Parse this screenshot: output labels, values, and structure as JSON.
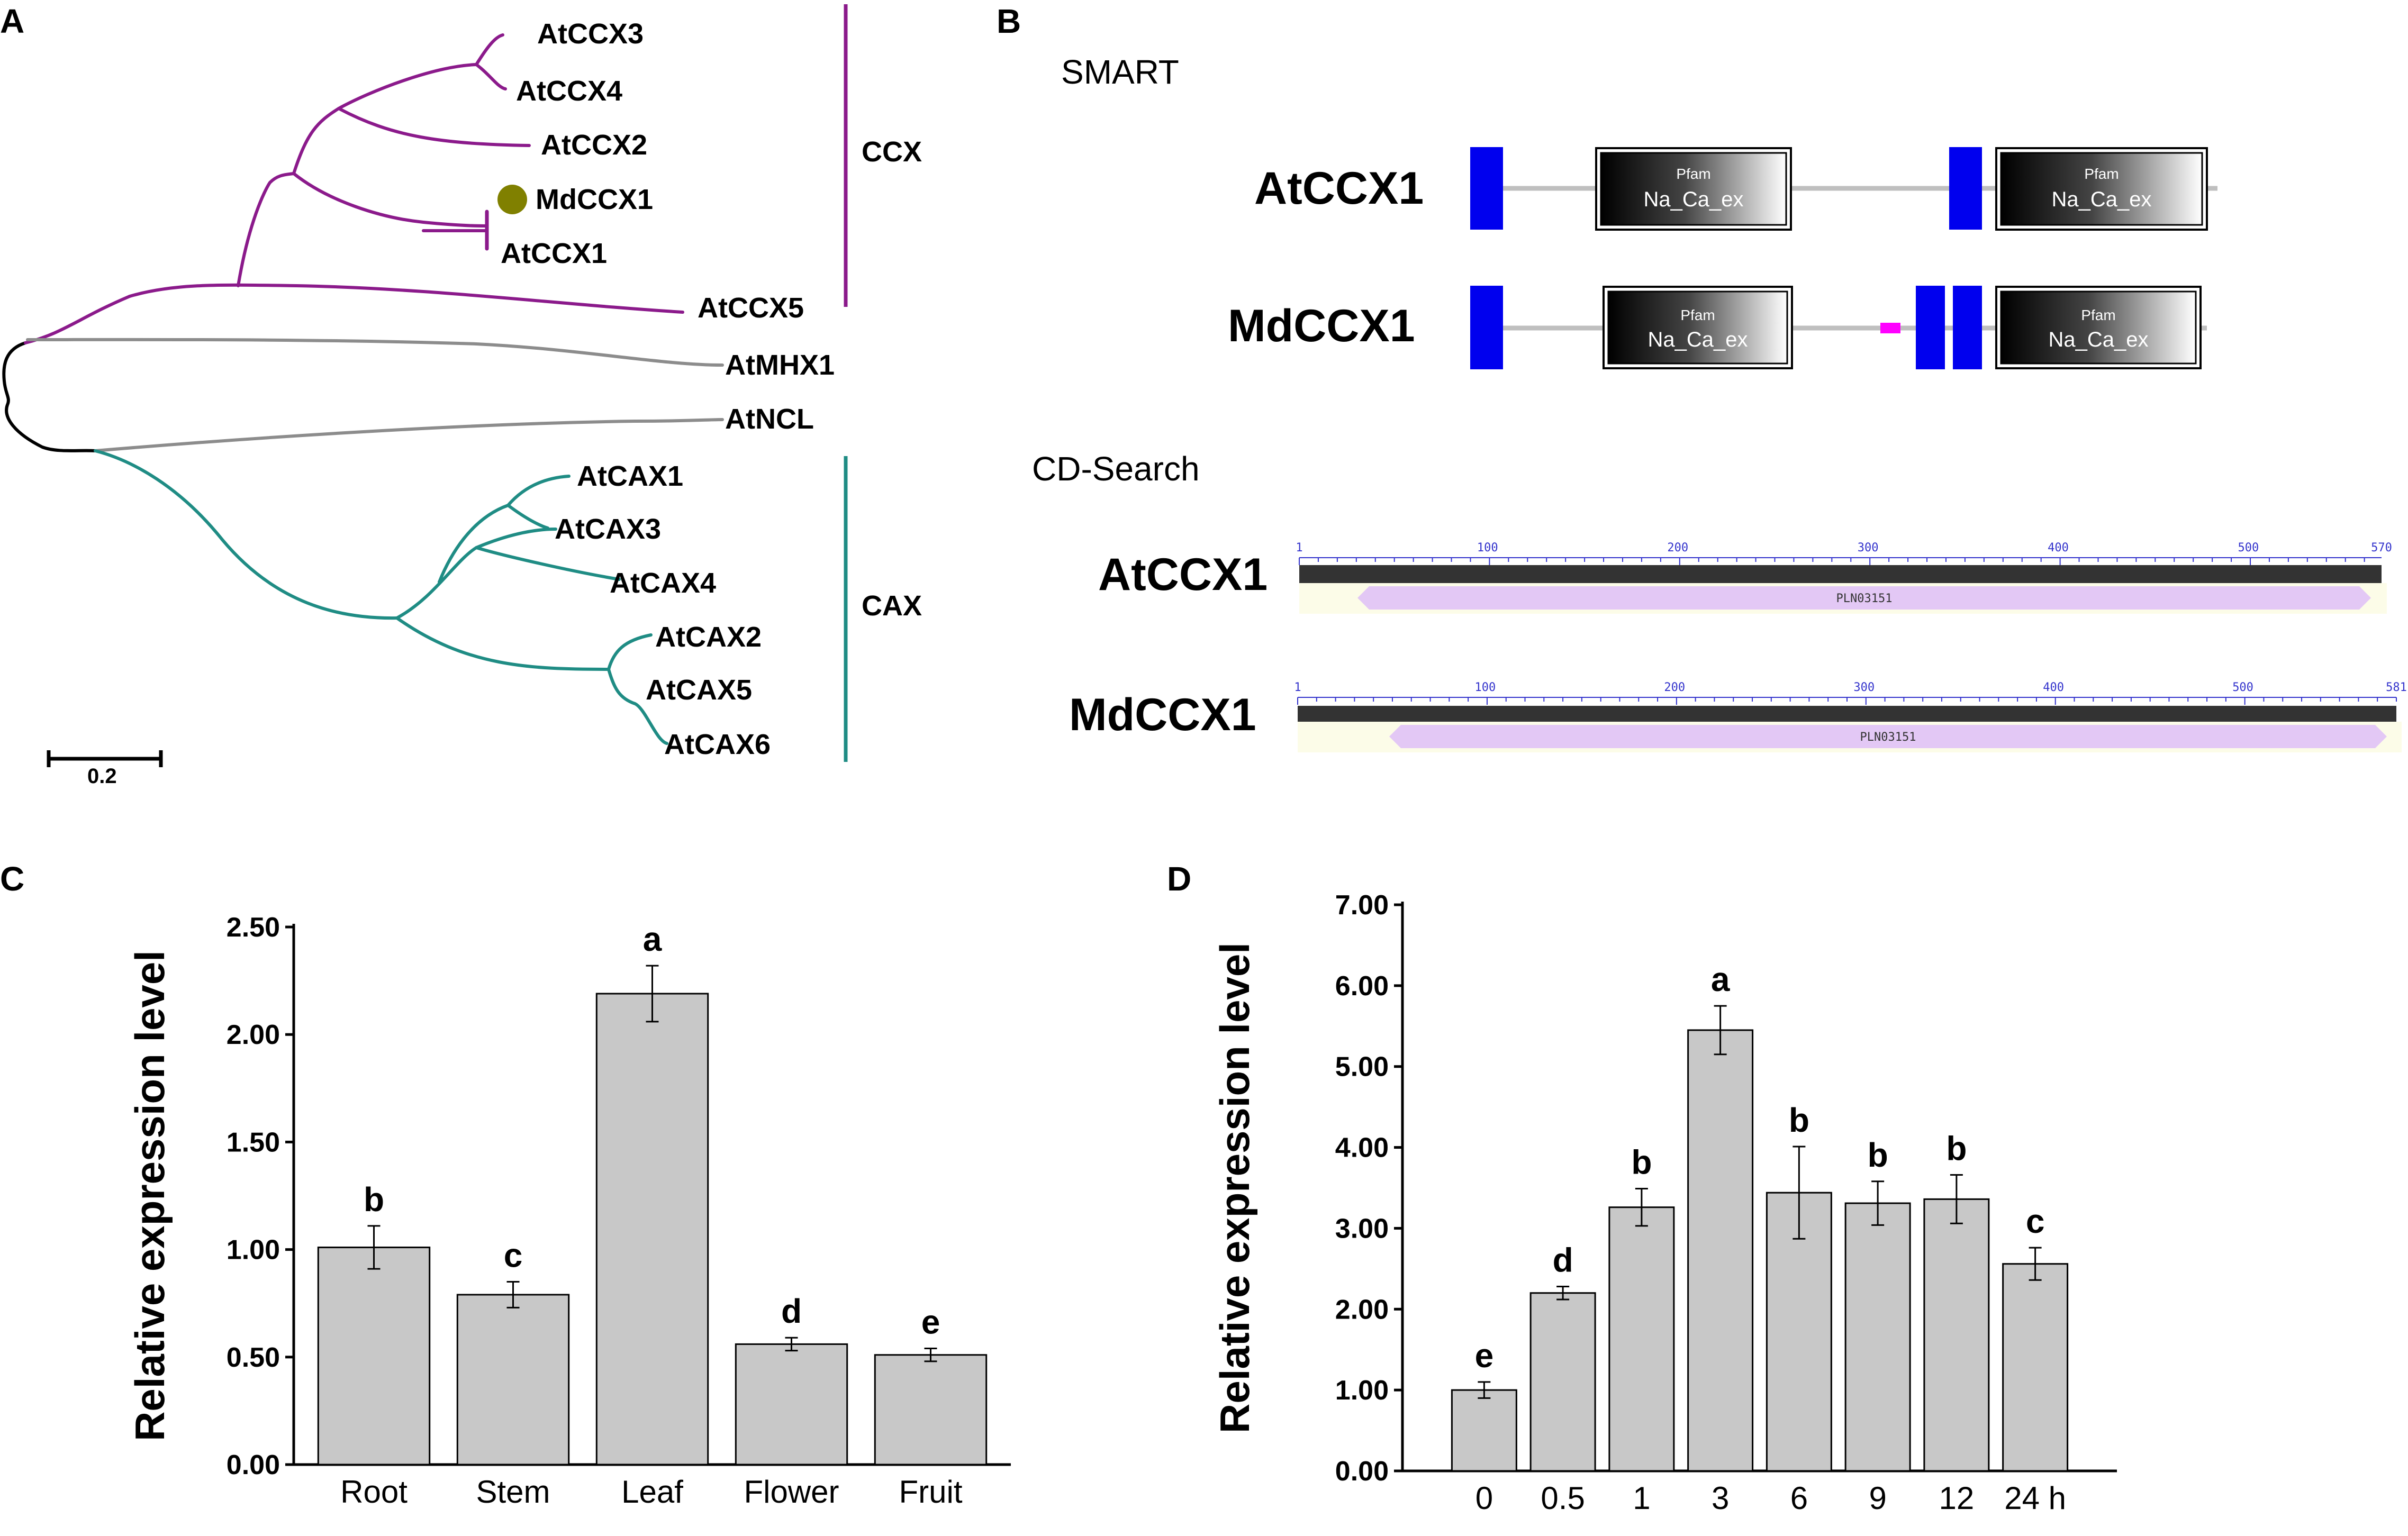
{
  "colors": {
    "ccx": "#8b1a8b",
    "cax": "#1f8c84",
    "outgroup": "#8c8c8c",
    "root": "#000000",
    "marker": "#808000",
    "tm": "#0000ee",
    "low_complexity": "#ff00ff",
    "bar": "#c8c8c8",
    "cd_bar": "#333333",
    "cd_domain": "#e3c8f5",
    "cd_band": "#fcfce8"
  },
  "panels": {
    "a": "A",
    "b": "B",
    "c": "C",
    "d": "D"
  },
  "tree": {
    "leaves": [
      "AtCCX3",
      "AtCCX4",
      "AtCCX2",
      "MdCCX1",
      "AtCCX1",
      "AtCCX5",
      "AtMHX1",
      "AtNCL",
      "AtCAX1",
      "AtCAX3",
      "AtCAX4",
      "AtCAX2",
      "AtCAX5",
      "AtCAX6"
    ],
    "clades": [
      "CCX",
      "CAX"
    ],
    "scale": "0.2"
  },
  "smart": {
    "title": "SMART",
    "proteins": [
      "AtCCX1",
      "MdCCX1"
    ],
    "domain_source": "Pfam",
    "domain_name": "Na_Ca_ex"
  },
  "cdsearch": {
    "title": "CD-Search",
    "proteins": [
      {
        "name": "AtCCX1",
        "length": 570,
        "ticks": [
          "1",
          "100",
          "200",
          "300",
          "400",
          "500",
          "570"
        ],
        "hit": "PLN03151"
      },
      {
        "name": "MdCCX1",
        "length": 581,
        "ticks": [
          "1",
          "100",
          "200",
          "300",
          "400",
          "500",
          "581"
        ],
        "hit": "PLN03151"
      }
    ]
  },
  "chart_data": [
    {
      "type": "bar",
      "panel": "C",
      "ylabel": "Relative expression level",
      "xlabel": "",
      "ylim": [
        0,
        2.5
      ],
      "yticks": [
        "0.00",
        "0.50",
        "1.00",
        "1.50",
        "2.00",
        "2.50"
      ],
      "categories": [
        "Root",
        "Stem",
        "Leaf",
        "Flower",
        "Fruit"
      ],
      "values": [
        1.01,
        0.79,
        2.19,
        0.56,
        0.51
      ],
      "errors": [
        0.1,
        0.06,
        0.13,
        0.03,
        0.03
      ],
      "significance": [
        "b",
        "c",
        "a",
        "d",
        "e"
      ]
    },
    {
      "type": "bar",
      "panel": "D",
      "ylabel": "Relative expression level",
      "xlabel": "",
      "ylim": [
        0,
        7.0
      ],
      "yticks": [
        "0.00",
        "1.00",
        "2.00",
        "3.00",
        "4.00",
        "5.00",
        "6.00",
        "7.00"
      ],
      "categories": [
        "0",
        "0.5",
        "1",
        "3",
        "6",
        "9",
        "12",
        "24 h"
      ],
      "values": [
        1.0,
        2.2,
        3.26,
        5.45,
        3.44,
        3.31,
        3.36,
        2.56
      ],
      "errors": [
        0.1,
        0.08,
        0.23,
        0.3,
        0.57,
        0.27,
        0.3,
        0.2
      ],
      "significance": [
        "e",
        "d",
        "b",
        "a",
        "b",
        "b",
        "b",
        "c"
      ]
    }
  ]
}
